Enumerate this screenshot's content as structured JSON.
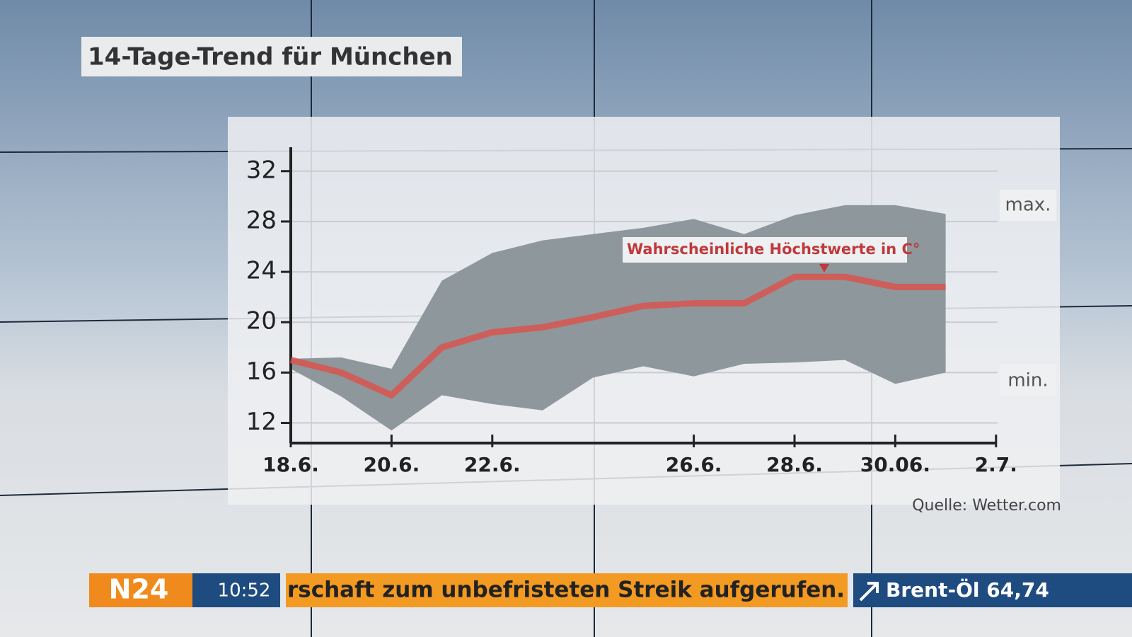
{
  "chart_data": {
    "type": "line",
    "title": "14-Tage-Trend für München",
    "categories": [
      "18.6.",
      null,
      "20.6.",
      null,
      "22.6.",
      null,
      null,
      null,
      "26.6.",
      null,
      "28.6.",
      null,
      "30.06.",
      null,
      "2.7."
    ],
    "series": [
      {
        "name": "Wahrscheinliche Höchstwerte in C°",
        "color": "#d9534f",
        "values": [
          17.0,
          16.0,
          14.2,
          18.0,
          19.2,
          19.6,
          20.4,
          21.3,
          21.5,
          21.5,
          23.6,
          23.6,
          22.8,
          22.8,
          null
        ]
      }
    ],
    "range": {
      "upper_label": "max.",
      "lower_label": "min.",
      "color": "#8e979b",
      "upper": [
        17.1,
        17.2,
        16.3,
        23.3,
        25.5,
        26.5,
        27.0,
        27.5,
        28.2,
        27.0,
        28.5,
        29.3,
        29.3,
        28.6,
        null
      ],
      "lower": [
        16.3,
        14.1,
        11.4,
        14.2,
        13.5,
        13.0,
        15.6,
        16.5,
        15.7,
        16.7,
        16.8,
        17.0,
        15.1,
        16.0,
        null
      ]
    },
    "ylim": [
      10.4,
      33.9
    ],
    "yticks": [
      12,
      16,
      20,
      24,
      28,
      32
    ],
    "grid": true,
    "source": "Quelle: Wetter.com"
  },
  "overlay": {
    "channel": "N24",
    "time": "10:52",
    "ticker": "rschaft zum unbefristeten Streik aufgerufen.",
    "market": "Brent-Öl 64,74"
  }
}
